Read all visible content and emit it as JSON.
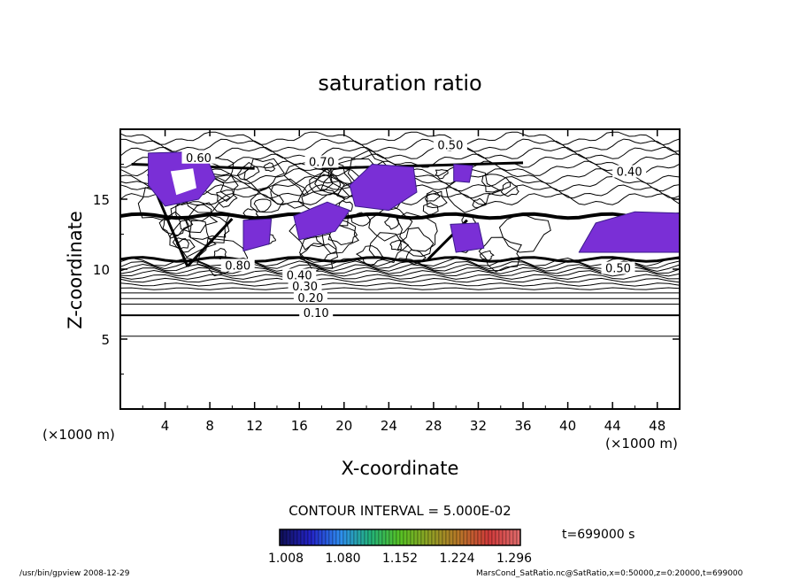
{
  "chart_data": {
    "type": "contour",
    "title": "saturation ratio",
    "xlabel": "X-coordinate",
    "ylabel": "Z-coordinate",
    "x_unit": "(×1000 m)",
    "y_unit": "(×1000 m)",
    "xlim": [
      0,
      50
    ],
    "ylim": [
      0,
      20
    ],
    "x_ticks": [
      "4",
      "8",
      "12",
      "16",
      "20",
      "24",
      "28",
      "32",
      "36",
      "40",
      "44",
      "48"
    ],
    "y_ticks": [
      "5",
      "10",
      "15"
    ],
    "contour_interval_text": "CONTOUR INTERVAL = 5.000E-02",
    "contour_labels": [
      {
        "text": "0.10",
        "x": 17.5,
        "z": 6.7
      },
      {
        "text": "0.20",
        "x": 17.0,
        "z": 7.8
      },
      {
        "text": "0.30",
        "x": 16.5,
        "z": 8.6
      },
      {
        "text": "0.40",
        "x": 16.0,
        "z": 9.4
      },
      {
        "text": "0.50",
        "x": 29.5,
        "z": 18.7
      },
      {
        "text": "0.60",
        "x": 7.0,
        "z": 17.8
      },
      {
        "text": "0.70",
        "x": 18.0,
        "z": 17.5
      },
      {
        "text": "0.80",
        "x": 10.5,
        "z": 10.1
      },
      {
        "text": "0.40",
        "x": 45.5,
        "z": 16.8
      },
      {
        "text": "0.50",
        "x": 44.5,
        "z": 9.9
      }
    ],
    "colorbar": {
      "ticks": [
        "1.008",
        "1.080",
        "1.152",
        "1.224",
        "1.296"
      ],
      "min": 1.008,
      "max": 1.296,
      "colors": [
        "#10105a",
        "#2323c8",
        "#2e8ef0",
        "#22b27a",
        "#56c224",
        "#90a024",
        "#b87628",
        "#d03a3a",
        "#e06a6a"
      ]
    },
    "supersaturated_color": "#7a2fd6",
    "time_text": "t=699000 s"
  },
  "footer": {
    "left": "/usr/bin/gpview   2008-12-29",
    "right": "MarsCond_SatRatio.nc@SatRatio,x=0:50000,z=0:20000,t=699000"
  }
}
